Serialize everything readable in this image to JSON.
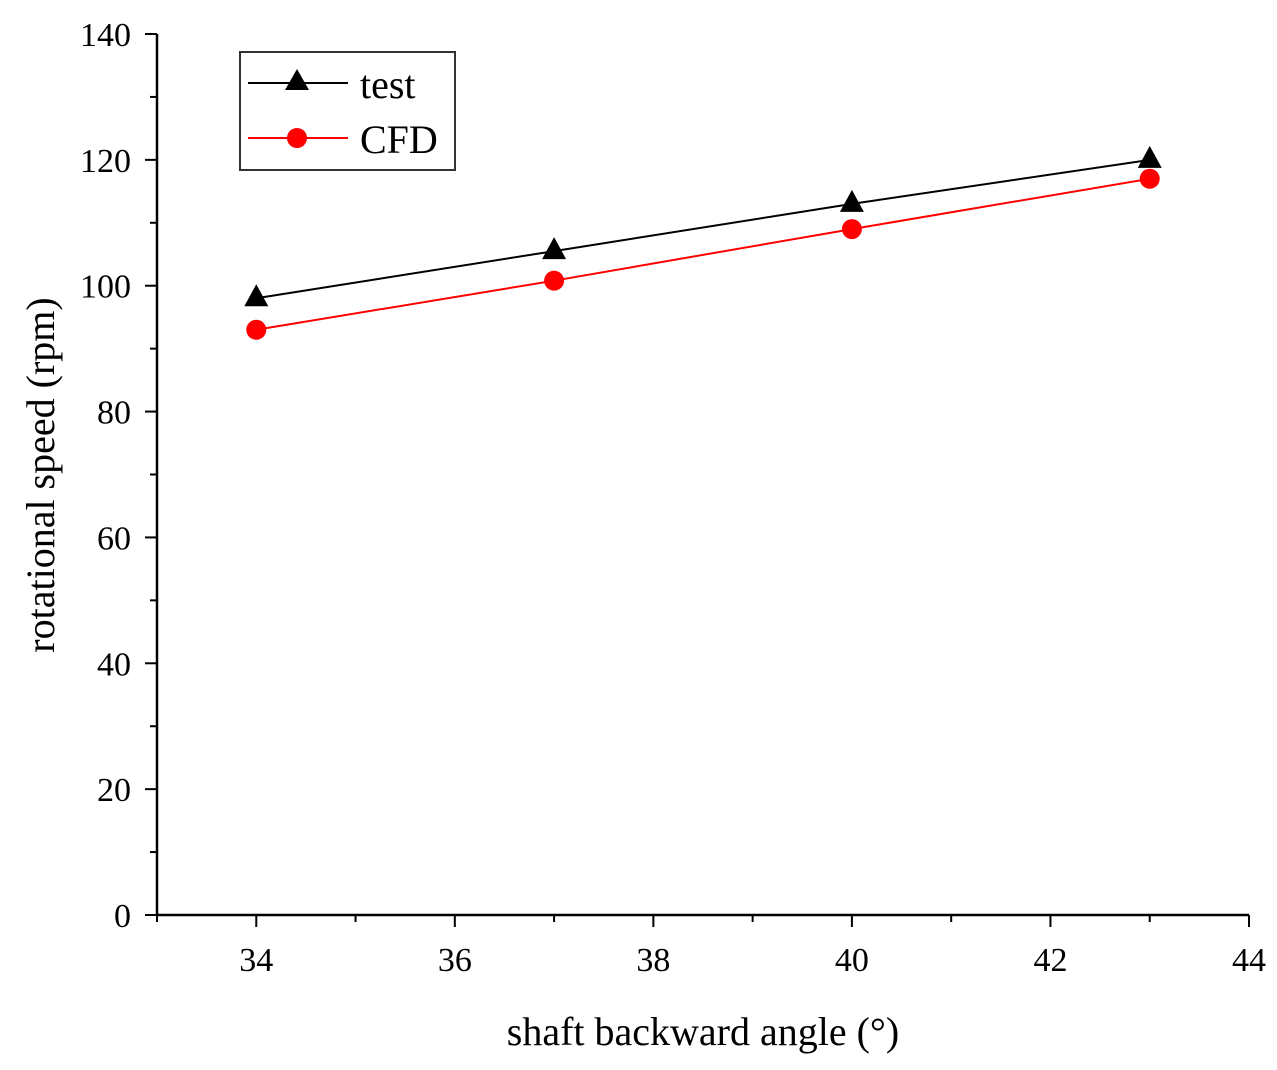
{
  "chart_data": {
    "type": "line",
    "title": "",
    "xlabel": "shaft backward angle (°)",
    "ylabel": "rotational speed (rpm)",
    "xlim": [
      33,
      44
    ],
    "ylim": [
      0,
      140
    ],
    "x_ticks": [
      34,
      36,
      38,
      40,
      42,
      44
    ],
    "y_ticks": [
      0,
      20,
      40,
      60,
      80,
      100,
      120,
      140
    ],
    "grid": false,
    "legend_position": "top-left",
    "series": [
      {
        "name": "test",
        "color": "#000000",
        "marker": "triangle",
        "x": [
          34,
          37,
          40,
          43
        ],
        "values": [
          98,
          105.5,
          113,
          120
        ]
      },
      {
        "name": "CFD",
        "color": "#ff0000",
        "marker": "circle",
        "x": [
          34,
          37,
          40,
          43
        ],
        "values": [
          93,
          100.8,
          109,
          117
        ]
      }
    ]
  }
}
